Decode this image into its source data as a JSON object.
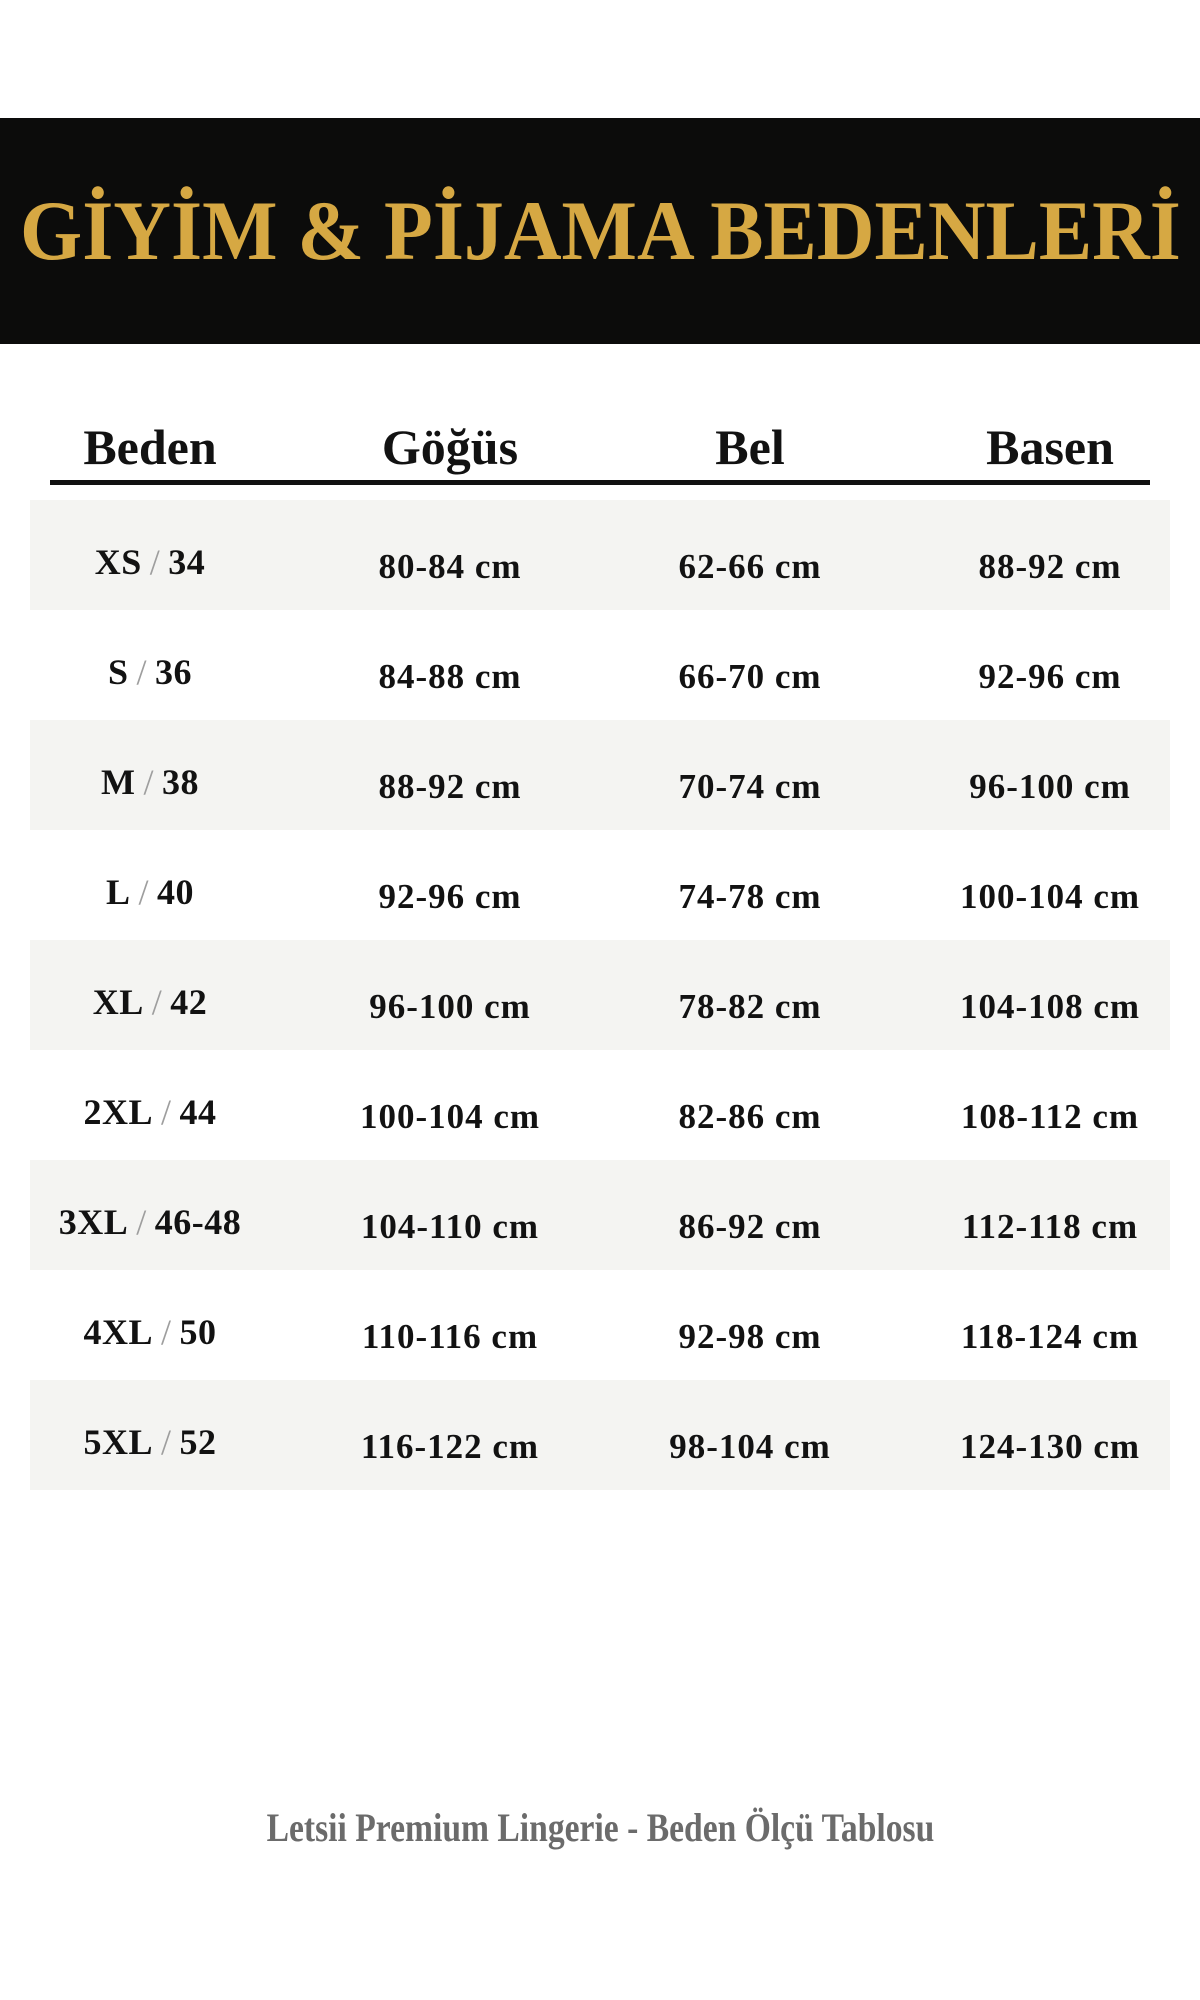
{
  "banner": {
    "title": "GİYİM & PİJAMA BEDENLERİ"
  },
  "table": {
    "columns": [
      "Beden",
      "Göğüs",
      "Bel",
      "Basen"
    ],
    "size_separator": "/",
    "rows": [
      {
        "size": "XS",
        "eu": "34",
        "chest": "80-84 cm",
        "waist": "62-66 cm",
        "hips": "88-92 cm"
      },
      {
        "size": "S",
        "eu": "36",
        "chest": "84-88 cm",
        "waist": "66-70 cm",
        "hips": "92-96 cm"
      },
      {
        "size": "M",
        "eu": "38",
        "chest": "88-92 cm",
        "waist": "70-74 cm",
        "hips": "96-100 cm"
      },
      {
        "size": "L",
        "eu": "40",
        "chest": "92-96 cm",
        "waist": "74-78 cm",
        "hips": "100-104 cm"
      },
      {
        "size": "XL",
        "eu": "42",
        "chest": "96-100 cm",
        "waist": "78-82 cm",
        "hips": "104-108 cm"
      },
      {
        "size": "2XL",
        "eu": "44",
        "chest": "100-104 cm",
        "waist": "82-86 cm",
        "hips": "108-112 cm"
      },
      {
        "size": "3XL",
        "eu": "46-48",
        "chest": "104-110 cm",
        "waist": "86-92 cm",
        "hips": "112-118 cm"
      },
      {
        "size": "4XL",
        "eu": "50",
        "chest": "110-116 cm",
        "waist": "92-98 cm",
        "hips": "118-124 cm"
      },
      {
        "size": "5XL",
        "eu": "52",
        "chest": "116-122 cm",
        "waist": "98-104 cm",
        "hips": "124-130 cm"
      }
    ]
  },
  "footer": {
    "text": "Letsii Premium Lingerie - Beden Ölçü Tablosu"
  },
  "colors": {
    "banner_background": "#0c0c0b",
    "title_gold": "#d6a843",
    "text_black": "#121212",
    "row_stripe": "#f4f4f2",
    "separator_gray": "#9e9e9e",
    "footer_gray": "#6b6b6b"
  }
}
